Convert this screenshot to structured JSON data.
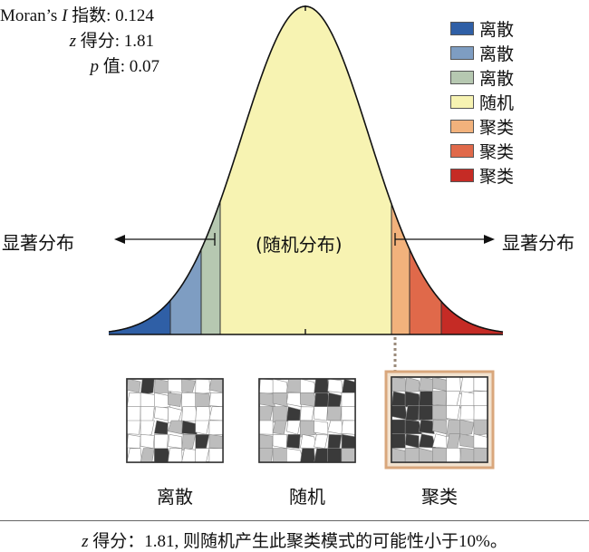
{
  "stats": {
    "moran_prefix": "Moran’s ",
    "moran_italic": "I",
    "moran_suffix": " 指数: 0.124",
    "z_italic": "z",
    "z_suffix": " 得分: 1.81",
    "p_italic": "p",
    "p_suffix": " 值: 0.07"
  },
  "legend": [
    {
      "label": "离散",
      "color": "#2f5fa6"
    },
    {
      "label": "离散",
      "color": "#7e9dc2"
    },
    {
      "label": "离散",
      "color": "#b6c8b1"
    },
    {
      "label": "随机",
      "color": "#f7f3b2"
    },
    {
      "label": "聚类",
      "color": "#f2b27c"
    },
    {
      "label": "聚类",
      "color": "#e0694a"
    },
    {
      "label": "聚类",
      "color": "#c52b25"
    }
  ],
  "curve": {
    "center_label": "(随机分布)",
    "left_label": "显著分布",
    "right_label": "显著分布"
  },
  "thumbnails": [
    {
      "label": "离散",
      "pattern": "dispersed"
    },
    {
      "label": "随机",
      "pattern": "random"
    },
    {
      "label": "聚类",
      "pattern": "clustered"
    }
  ],
  "caption": {
    "italic": "z",
    "text": " 得分：1.81, 则随机产生此聚类模式的可能性小于10%。"
  }
}
